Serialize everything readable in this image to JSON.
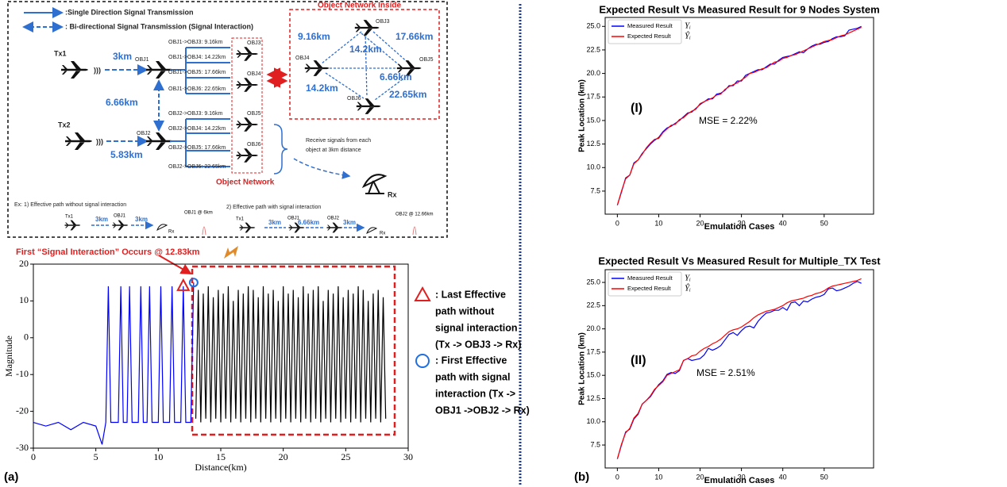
{
  "panel_labels": [
    "(a)",
    "(b)"
  ],
  "diagram": {
    "legend": [
      ":Single Direction Signal Transmission",
      ": Bi-directional Signal Transmission (Signal Interaction)"
    ],
    "sources": [
      "Tx1",
      "Tx2"
    ],
    "objects": [
      "OBJ1",
      "OBJ2"
    ],
    "distances": [
      "3km",
      "6.66km",
      "5.83km"
    ],
    "paths": [
      "OBJ1->OBJ3: 9.16km",
      "OBJ1->OBJ4: 14.22km",
      "OBJ1->OBJ5: 17.66km",
      "OBJ1->OBJ6: 22.65km",
      "OBJ2->OBJ3: 9.16km",
      "OBJ2->OBJ4: 14.22km",
      "OBJ2->OBJ5: 17.66km",
      "OBJ2->OBJ6: 22.65km"
    ],
    "network_nodes": [
      "OBJ3",
      "OBJ4",
      "OBJ5",
      "OBJ6"
    ],
    "network_label": "Object Network",
    "inside_title": "Object Network Inside",
    "inside_nodes": [
      "OBJ3",
      "OBJ4",
      "OBJ5",
      "OBJ6"
    ],
    "inside_edges": [
      "9.16km",
      "17.66km",
      "14.2km",
      "6.66km",
      "14.2km",
      "22.65km"
    ],
    "receiver_note": [
      "Receive signals from each",
      "object at 3km distance"
    ],
    "receiver": "Rx",
    "example1": {
      "title": "Ex: 1) Effective path without signal interaction",
      "labels": [
        "Tx1",
        "3km",
        "OBJ1",
        "3km",
        "Rx"
      ],
      "peak": "OBJ1 @ 6km"
    },
    "example2": {
      "title": "2) Effective path with signal interaction",
      "labels": [
        "Tx1",
        "3km",
        "OBJ1",
        "6.66km",
        "OBJ2",
        "3km",
        "Rx"
      ],
      "peak": "OBJ2 @ 12.66km"
    }
  },
  "chart_data": [
    {
      "type": "line",
      "xlabel": "Distance(km)",
      "ylabel": "Magnitude",
      "annotation": "First “Signal Interaction” Occurs @ 12.83km",
      "xlim": [
        0,
        30
      ],
      "ylim": [
        -30,
        20
      ],
      "xticks": [
        0,
        5,
        10,
        15,
        20,
        25,
        30
      ],
      "yticks": [
        -30,
        -20,
        -10,
        0,
        10,
        20
      ],
      "series": [
        {
          "color": "#0000ff",
          "x": [
            0,
            1,
            2,
            3,
            4,
            5,
            5.5,
            5.8,
            6.0,
            6.2,
            6.8,
            7.0,
            7.2,
            7.5,
            7.7,
            7.9,
            8.4,
            8.6,
            8.8,
            9.1,
            9.3,
            9.5,
            10.0,
            10.2,
            10.4,
            10.9,
            11.1,
            11.3,
            11.8,
            12.0,
            12.2,
            12.6,
            12.83
          ],
          "values": [
            -23,
            -24,
            -23,
            -25,
            -23,
            -24,
            -29,
            -23,
            14,
            -23,
            -23,
            14,
            -23,
            -23,
            14,
            -23,
            -23,
            14,
            -23,
            -23,
            14,
            -23,
            -23,
            14,
            -23,
            -23,
            14,
            -23,
            -23,
            14,
            -23,
            -23,
            15
          ]
        },
        {
          "color": "#000000",
          "x": [
            13.0,
            13.2,
            13.4,
            13.6,
            13.8,
            14.0,
            14.2,
            14.4,
            14.6,
            14.8,
            15.0,
            15.2,
            15.4,
            15.6,
            15.8,
            16.0,
            16.2,
            16.4,
            16.6,
            16.8,
            17.0,
            17.2,
            17.4,
            17.6,
            17.8,
            18.0,
            18.2,
            18.4,
            18.6,
            18.8,
            19.0,
            19.2,
            19.4,
            19.6,
            19.8,
            20.0,
            20.2,
            20.4,
            20.6,
            20.8,
            21.0,
            21.2,
            21.4,
            21.6,
            21.8,
            22.0,
            22.2,
            22.4,
            22.6,
            22.8,
            23.0,
            23.2,
            23.4,
            23.6,
            23.8,
            24.0,
            24.2,
            24.4,
            24.6,
            24.8,
            25.0,
            25.2,
            25.4,
            25.6,
            25.8,
            26.0,
            26.2,
            26.4,
            26.6,
            26.8,
            27.0,
            27.2,
            27.4,
            27.6,
            27.8,
            28.0,
            28.2
          ],
          "values": [
            -22,
            13,
            -23,
            12,
            -22,
            14,
            -23,
            11,
            -22,
            13,
            -23,
            12,
            -22,
            14,
            -23,
            10,
            -22,
            13,
            -23,
            12,
            -22,
            14,
            -23,
            13,
            -22,
            11,
            -23,
            14,
            -22,
            12,
            -23,
            13,
            -22,
            10,
            -23,
            14,
            -22,
            12,
            -23,
            13,
            -22,
            11,
            -23,
            14,
            -22,
            12,
            -23,
            13,
            -22,
            14,
            -23,
            10,
            -22,
            13,
            -23,
            12,
            -22,
            14,
            -23,
            11,
            -22,
            13,
            -23,
            12,
            -22,
            14,
            -23,
            13,
            -22,
            10,
            -23,
            12,
            -22,
            13,
            -23,
            11,
            -22
          ]
        }
      ],
      "markers": [
        {
          "lines": [
            ": Last Effective",
            "path without",
            "signal interaction",
            "(Tx -> OBJ3 -> Rx)"
          ],
          "color": "#e02020"
        },
        {
          "lines": [
            ": First Effective",
            "path with signal",
            "interaction (Tx ->",
            "OBJ1 ->OBJ2 -> Rx)"
          ],
          "color": "#1f6fe0"
        }
      ]
    },
    {
      "type": "line",
      "title": "Expected Result Vs Measured Result for 9 Nodes System",
      "xlabel": "Emulation Cases",
      "ylabel": "Peak Location (km)",
      "label": "(I)",
      "annotation": "MSE = 2.22%",
      "xlim": [
        -2.95,
        61.95
      ],
      "ylim": [
        5.05,
        25.95
      ],
      "xticks": [
        0,
        10,
        20,
        30,
        40,
        50
      ],
      "yticks": [
        7.5,
        {
          "value": 10,
          "label": "10.0"
        },
        12.5,
        {
          "value": 15,
          "label": "15.0"
        },
        17.5,
        {
          "value": 20,
          "label": "20.0"
        },
        22.5,
        {
          "value": 25,
          "label": "25.0"
        }
      ],
      "x": [
        0,
        1,
        2,
        3,
        4,
        5,
        6,
        7,
        8,
        9,
        10,
        11,
        12,
        13,
        14,
        15,
        16,
        17,
        18,
        19,
        20,
        21,
        22,
        23,
        24,
        25,
        26,
        27,
        28,
        29,
        30,
        31,
        32,
        33,
        34,
        35,
        36,
        37,
        38,
        39,
        40,
        41,
        42,
        43,
        44,
        45,
        46,
        47,
        48,
        49,
        50,
        51,
        52,
        53,
        54,
        55,
        56,
        57,
        58,
        59
      ],
      "series": [
        {
          "name": "Measured Result",
          "symbol": "Yᵢ",
          "color": "#0000ff",
          "values": [
            6.0,
            7.4,
            8.9,
            9.2,
            10.5,
            10.8,
            11.5,
            12.0,
            12.5,
            12.9,
            13.2,
            13.8,
            14.2,
            14.4,
            14.7,
            15.0,
            15.4,
            15.8,
            15.9,
            16.3,
            16.7,
            17.0,
            17.3,
            17.3,
            17.8,
            17.9,
            18.2,
            18.7,
            18.7,
            19.2,
            19.2,
            19.8,
            20.0,
            20.2,
            20.4,
            20.4,
            20.7,
            21.0,
            21.0,
            21.4,
            21.7,
            21.8,
            21.9,
            22.1,
            22.3,
            22.2,
            22.6,
            22.9,
            23.1,
            23.1,
            23.3,
            23.4,
            23.7,
            23.9,
            23.9,
            24.0,
            24.6,
            24.7,
            24.8,
            25.0
          ]
        },
        {
          "name": "Expected Result",
          "symbol": "Ŷᵢ",
          "color": "#ff0000",
          "values": [
            6.0,
            7.5,
            8.8,
            9.2,
            10.4,
            10.8,
            11.4,
            12.1,
            12.6,
            13.0,
            13.1,
            13.7,
            14.1,
            14.5,
            14.6,
            15.1,
            15.3,
            15.7,
            16.0,
            16.2,
            16.8,
            17.0,
            17.2,
            17.4,
            17.7,
            17.8,
            18.3,
            18.6,
            18.8,
            19.0,
            19.3,
            19.6,
            20.0,
            20.1,
            20.3,
            20.5,
            20.6,
            20.9,
            21.2,
            21.3,
            21.6,
            21.7,
            21.9,
            22.0,
            22.2,
            22.4,
            22.6,
            22.8,
            23.0,
            23.2,
            23.4,
            23.5,
            23.6,
            23.8,
            24.0,
            24.1,
            24.3,
            24.5,
            24.7,
            24.9
          ]
        }
      ]
    },
    {
      "type": "line",
      "title": "Expected Result Vs Measured Result for Multiple_TX Test",
      "xlabel": "Emulation Cases",
      "ylabel": "Peak Location (km)",
      "label": "(II)",
      "annotation": "MSE = 2.51%",
      "xlim": [
        -2.95,
        61.95
      ],
      "ylim": [
        5.03,
        26.37
      ],
      "xticks": [
        0,
        10,
        20,
        30,
        40,
        50
      ],
      "yticks": [
        7.5,
        {
          "value": 10,
          "label": "10.0"
        },
        12.5,
        {
          "value": 15,
          "label": "15.0"
        },
        17.5,
        {
          "value": 20,
          "label": "20.0"
        },
        22.5,
        {
          "value": 25,
          "label": "25.0"
        }
      ],
      "x": [
        0,
        1,
        2,
        3,
        4,
        5,
        6,
        7,
        8,
        9,
        10,
        11,
        12,
        13,
        14,
        15,
        16,
        17,
        18,
        19,
        20,
        21,
        22,
        23,
        24,
        25,
        26,
        27,
        28,
        29,
        30,
        31,
        32,
        33,
        34,
        35,
        36,
        37,
        38,
        39,
        40,
        41,
        42,
        43,
        44,
        45,
        46,
        47,
        48,
        49,
        50,
        51,
        52,
        53,
        54,
        55,
        56,
        57,
        58,
        59
      ],
      "series": [
        {
          "name": "Measured Result",
          "symbol": "Yᵢ",
          "color": "#0000ff",
          "values": [
            6.0,
            7.5,
            8.9,
            9.2,
            10.3,
            10.8,
            11.9,
            12.3,
            12.7,
            13.4,
            14.0,
            14.4,
            15.1,
            15.3,
            15.2,
            15.5,
            16.6,
            16.8,
            16.6,
            16.7,
            16.8,
            17.2,
            17.9,
            17.7,
            17.9,
            18.2,
            18.8,
            19.4,
            19.6,
            19.3,
            19.8,
            20.2,
            20.3,
            20.1,
            20.8,
            21.3,
            21.7,
            21.8,
            22.0,
            22.0,
            22.3,
            22.0,
            22.8,
            22.9,
            22.5,
            23.0,
            22.9,
            23.2,
            23.4,
            23.5,
            23.7,
            24.3,
            24.4,
            24.1,
            24.2,
            24.4,
            24.6,
            24.9,
            25.1,
            24.9
          ]
        },
        {
          "name": "Expected Result",
          "symbol": "Ŷᵢ",
          "color": "#ff0000",
          "values": [
            6.0,
            7.6,
            8.8,
            9.3,
            10.4,
            10.9,
            11.9,
            12.3,
            12.8,
            13.5,
            13.9,
            14.3,
            15.0,
            15.2,
            15.4,
            15.6,
            16.6,
            16.8,
            17.1,
            17.2,
            17.6,
            17.9,
            18.1,
            18.4,
            18.6,
            18.9,
            19.3,
            19.7,
            19.9,
            20.0,
            20.2,
            20.5,
            20.8,
            21.2,
            21.5,
            21.7,
            21.9,
            22.0,
            22.1,
            22.3,
            22.5,
            22.8,
            23.0,
            23.1,
            23.2,
            23.3,
            23.5,
            23.6,
            23.8,
            23.9,
            24.1,
            24.4,
            24.6,
            24.7,
            24.8,
            24.9,
            25.0,
            25.1,
            25.2,
            25.4
          ]
        }
      ]
    }
  ]
}
